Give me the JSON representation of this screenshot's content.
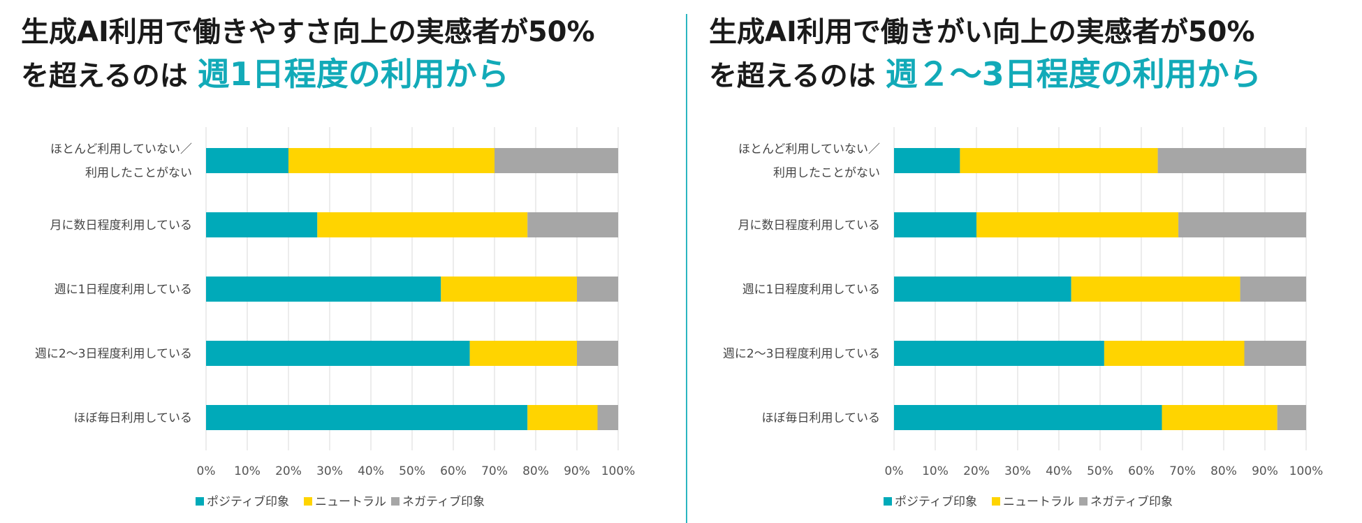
{
  "colors": {
    "positive": "#00aab9",
    "neutral": "#ffd400",
    "negative": "#a6a6a6",
    "grid": "#d9d9d9",
    "accent": "#12aab8"
  },
  "chart_data": [
    {
      "type": "bar",
      "orientation": "horizontal",
      "stacked": true,
      "title_line1": "生成AI利用で働きやすさ向上の実感者が50%",
      "title_line2_prefix": "を超えるのは",
      "title_line2_highlight": "週1日程度の利用から",
      "categories": [
        "ほとんど利用していない／利用したことがない",
        "月に数日程度利用している",
        "週に1日程度利用している",
        "週に2〜3日程度利用している",
        "ほぼ毎日利用している"
      ],
      "category_lines": [
        [
          "ほとんど利用していない／",
          "利用したことがない"
        ],
        [
          "月に数日程度利用している"
        ],
        [
          "週に1日程度利用している"
        ],
        [
          "週に2〜3日程度利用している"
        ],
        [
          "ほぼ毎日利用している"
        ]
      ],
      "series": [
        {
          "name": "ポジティブ印象",
          "values": [
            20,
            27,
            57,
            64,
            78
          ]
        },
        {
          "name": "ニュートラル",
          "values": [
            50,
            51,
            33,
            26,
            17
          ]
        },
        {
          "name": "ネガティブ印象",
          "values": [
            30,
            22,
            10,
            10,
            5
          ]
        }
      ],
      "xlim": [
        0,
        100
      ],
      "xticks": [
        "0%",
        "10%",
        "20%",
        "30%",
        "40%",
        "50%",
        "60%",
        "70%",
        "80%",
        "90%",
        "100%"
      ],
      "legend_position": "bottom-left"
    },
    {
      "type": "bar",
      "orientation": "horizontal",
      "stacked": true,
      "title_line1": "生成AI利用で働きがい向上の実感者が50%",
      "title_line2_prefix": "を超えるのは",
      "title_line2_highlight": "週２〜3日程度の利用から",
      "categories": [
        "ほとんど利用していない／利用したことがない",
        "月に数日程度利用している",
        "週に1日程度利用している",
        "週に2〜3日程度利用している",
        "ほぼ毎日利用している"
      ],
      "category_lines": [
        [
          "ほとんど利用していない／",
          "利用したことがない"
        ],
        [
          "月に数日程度利用している"
        ],
        [
          "週に1日程度利用している"
        ],
        [
          "週に2〜3日程度利用している"
        ],
        [
          "ほぼ毎日利用している"
        ]
      ],
      "series": [
        {
          "name": "ポジティブ印象",
          "values": [
            16,
            20,
            43,
            51,
            65
          ]
        },
        {
          "name": "ニュートラル",
          "values": [
            48,
            49,
            41,
            34,
            28
          ]
        },
        {
          "name": "ネガティブ印象",
          "values": [
            36,
            31,
            16,
            15,
            7
          ]
        }
      ],
      "xlim": [
        0,
        100
      ],
      "xticks": [
        "0%",
        "10%",
        "20%",
        "30%",
        "40%",
        "50%",
        "60%",
        "70%",
        "80%",
        "90%",
        "100%"
      ],
      "legend_position": "bottom-left"
    }
  ]
}
